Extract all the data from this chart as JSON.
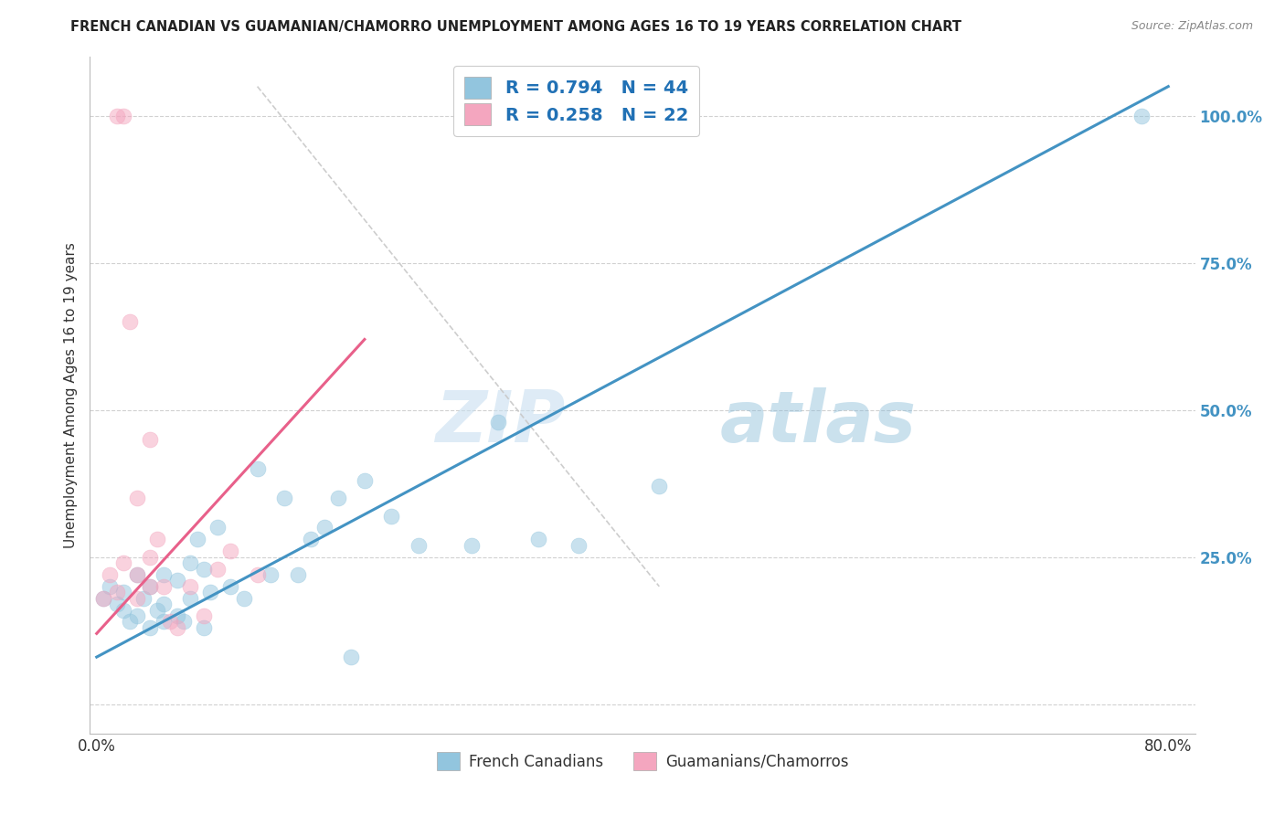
{
  "title": "FRENCH CANADIAN VS GUAMANIAN/CHAMORRO UNEMPLOYMENT AMONG AGES 16 TO 19 YEARS CORRELATION CHART",
  "source": "Source: ZipAtlas.com",
  "ylabel": "Unemployment Among Ages 16 to 19 years",
  "legend_labels": [
    "French Canadians",
    "Guamanians/Chamorros"
  ],
  "r_blue": 0.794,
  "n_blue": 44,
  "r_pink": 0.258,
  "n_pink": 22,
  "blue_color": "#92c5de",
  "pink_color": "#f4a6bf",
  "blue_line_color": "#4393c3",
  "pink_line_color": "#e8608a",
  "xlim": [
    -0.005,
    0.82
  ],
  "ylim": [
    -0.05,
    1.1
  ],
  "xticks": [
    0.0,
    0.1,
    0.2,
    0.3,
    0.4,
    0.5,
    0.6,
    0.7,
    0.8
  ],
  "xtick_labels": [
    "0.0%",
    "",
    "",
    "",
    "",
    "",
    "",
    "",
    "80.0%"
  ],
  "ytick_positions": [
    0.0,
    0.25,
    0.5,
    0.75,
    1.0
  ],
  "ytick_labels": [
    "",
    "25.0%",
    "50.0%",
    "75.0%",
    "100.0%"
  ],
  "blue_scatter_x": [
    0.005,
    0.01,
    0.015,
    0.02,
    0.02,
    0.025,
    0.03,
    0.03,
    0.035,
    0.04,
    0.04,
    0.045,
    0.05,
    0.05,
    0.05,
    0.06,
    0.06,
    0.065,
    0.07,
    0.07,
    0.075,
    0.08,
    0.08,
    0.085,
    0.09,
    0.1,
    0.11,
    0.12,
    0.13,
    0.14,
    0.15,
    0.16,
    0.17,
    0.18,
    0.19,
    0.2,
    0.22,
    0.24,
    0.28,
    0.3,
    0.33,
    0.36,
    0.42,
    0.78
  ],
  "blue_scatter_y": [
    0.18,
    0.2,
    0.17,
    0.16,
    0.19,
    0.14,
    0.15,
    0.22,
    0.18,
    0.13,
    0.2,
    0.16,
    0.14,
    0.17,
    0.22,
    0.15,
    0.21,
    0.14,
    0.24,
    0.18,
    0.28,
    0.13,
    0.23,
    0.19,
    0.3,
    0.2,
    0.18,
    0.4,
    0.22,
    0.35,
    0.22,
    0.28,
    0.3,
    0.35,
    0.08,
    0.38,
    0.32,
    0.27,
    0.27,
    0.48,
    0.28,
    0.27,
    0.37,
    1.0
  ],
  "pink_scatter_x": [
    0.005,
    0.01,
    0.015,
    0.02,
    0.025,
    0.03,
    0.03,
    0.04,
    0.04,
    0.045,
    0.05,
    0.055,
    0.06,
    0.07,
    0.08,
    0.09,
    0.1,
    0.12,
    0.015,
    0.02,
    0.03,
    0.04
  ],
  "pink_scatter_y": [
    0.18,
    0.22,
    1.0,
    1.0,
    0.65,
    0.22,
    0.35,
    0.25,
    0.45,
    0.28,
    0.2,
    0.14,
    0.13,
    0.2,
    0.15,
    0.23,
    0.26,
    0.22,
    0.19,
    0.24,
    0.18,
    0.2
  ],
  "blue_line_x": [
    0.0,
    0.8
  ],
  "blue_line_y": [
    0.08,
    1.05
  ],
  "pink_line_x": [
    0.0,
    0.2
  ],
  "pink_line_y": [
    0.12,
    0.62
  ],
  "gray_line_x": [
    0.12,
    0.42
  ],
  "gray_line_y": [
    1.05,
    0.2
  ],
  "watermark_zip": "ZIP",
  "watermark_atlas": "atlas",
  "background_color": "#ffffff",
  "grid_color": "#cccccc",
  "legend_text_color": "#2171b5",
  "ytick_color": "#4393c3"
}
